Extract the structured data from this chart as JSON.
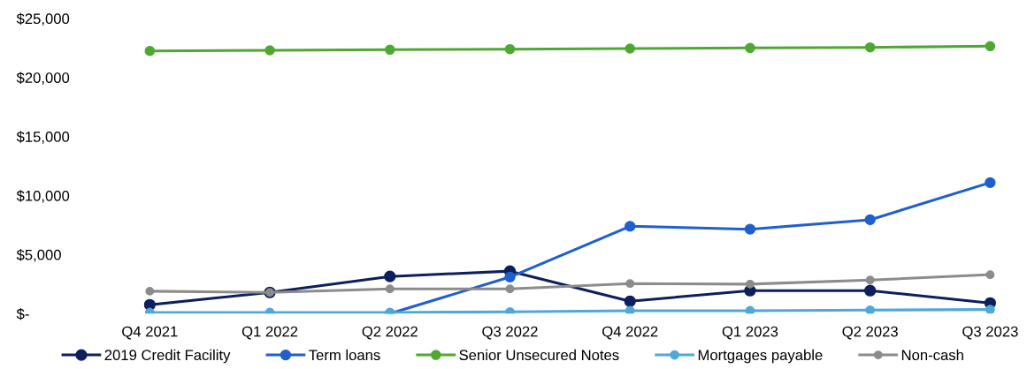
{
  "chart_data": {
    "type": "line",
    "categories": [
      "Q4 2021",
      "Q1 2022",
      "Q2 2022",
      "Q3 2022",
      "Q4 2022",
      "Q1 2023",
      "Q2 2023",
      "Q3 2023"
    ],
    "series": [
      {
        "name": "2019 Credit Facility",
        "color": "#0d1f5c",
        "values": [
          750,
          1800,
          3150,
          3600,
          1050,
          1950,
          1950,
          900
        ]
      },
      {
        "name": "Term loans",
        "color": "#1f5fcf",
        "values": [
          null,
          null,
          0,
          3100,
          7400,
          7150,
          7950,
          11100
        ]
      },
      {
        "name": "Senior Unsecured Notes",
        "color": "#4ea832",
        "values": [
          22250,
          22300,
          22350,
          22400,
          22450,
          22500,
          22550,
          22650
        ]
      },
      {
        "name": "Mortgages payable",
        "color": "#4fa8d8",
        "values": [
          100,
          100,
          100,
          150,
          250,
          250,
          300,
          350
        ]
      },
      {
        "name": "Non-cash",
        "color": "#8c8c8c",
        "values": [
          1900,
          1800,
          2100,
          2100,
          2550,
          2500,
          2850,
          3300
        ]
      }
    ],
    "ylim": [
      0,
      25000
    ],
    "yticks": [
      {
        "value": 0,
        "label": "$-"
      },
      {
        "value": 5000,
        "label": "$5,000"
      },
      {
        "value": 10000,
        "label": "$10,000"
      },
      {
        "value": 15000,
        "label": "$15,000"
      },
      {
        "value": 20000,
        "label": "$20,000"
      },
      {
        "value": 25000,
        "label": "$25,000"
      }
    ],
    "grid": false,
    "legend": "bottom",
    "marker": "circle",
    "line_style": "solid"
  }
}
